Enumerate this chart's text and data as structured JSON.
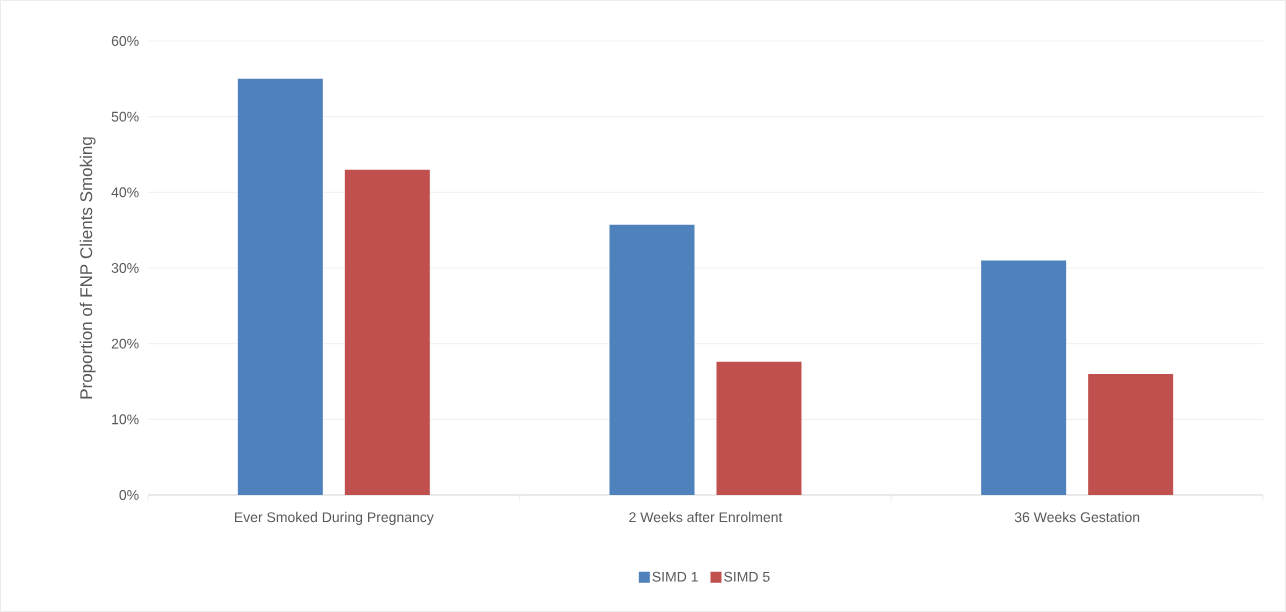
{
  "chart_data": {
    "type": "bar",
    "ylabel": "Proportion of FNP Clients Smoking",
    "categories": [
      "Ever Smoked During Pregnancy",
      "2 Weeks after Enrolment",
      "36 Weeks Gestation"
    ],
    "series": [
      {
        "name": "SIMD 1",
        "color": "#4f81bd",
        "values": [
          55,
          35.7,
          31
        ]
      },
      {
        "name": "SIMD 5",
        "color": "#c0504d",
        "values": [
          43,
          17.6,
          16
        ]
      }
    ],
    "ylim": [
      0,
      60
    ],
    "yticks": [
      {
        "value": 0,
        "label": "0%"
      },
      {
        "value": 10,
        "label": "10%"
      },
      {
        "value": 20,
        "label": "20%"
      },
      {
        "value": 30,
        "label": "30%"
      },
      {
        "value": 40,
        "label": "40%"
      },
      {
        "value": 50,
        "label": "50%"
      },
      {
        "value": 60,
        "label": "60%"
      }
    ],
    "grid": "y",
    "legend": "bottom"
  }
}
